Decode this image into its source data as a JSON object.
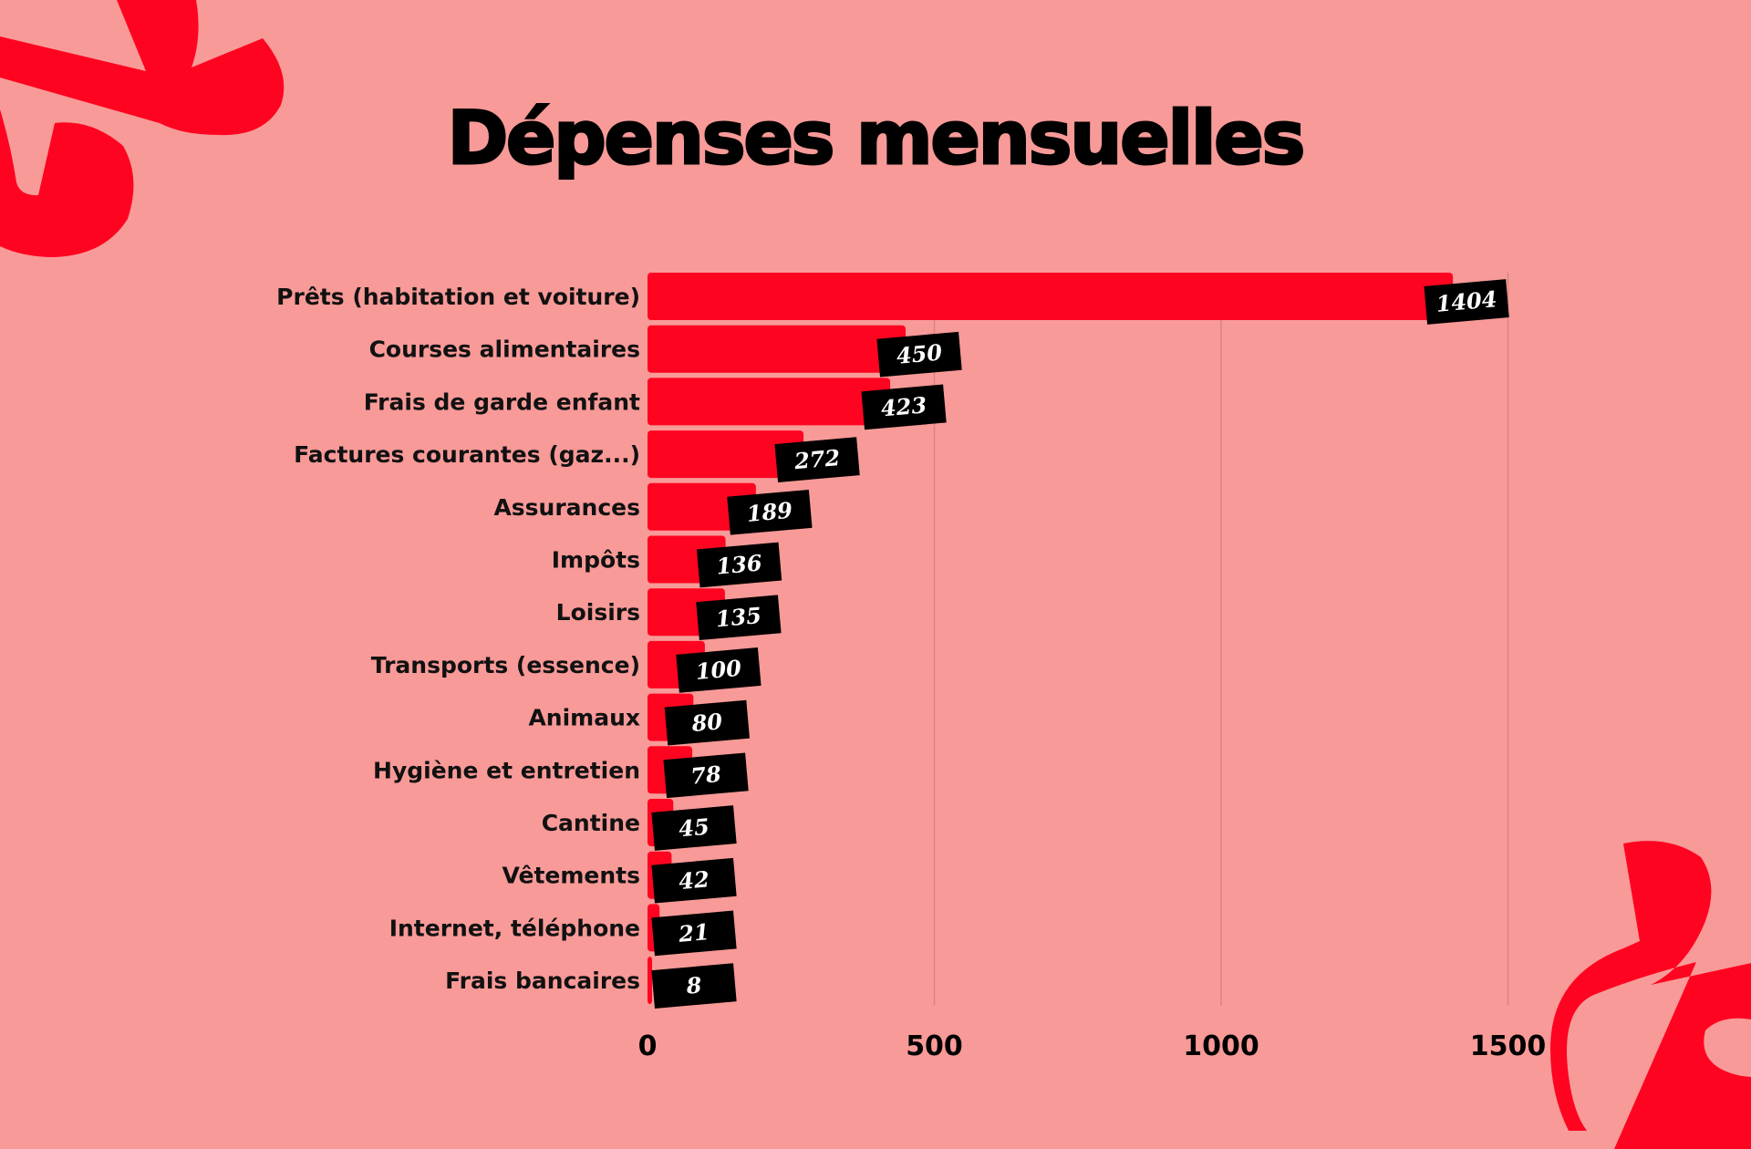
{
  "chart_data": {
    "type": "bar",
    "orientation": "horizontal",
    "title": "Dépenses mensuelles",
    "xlabel": "",
    "ylabel": "",
    "categories": [
      "Prêts (habitation et voiture)",
      "Courses alimentaires",
      "Frais de garde enfant",
      "Factures courantes (gaz...)",
      "Assurances",
      "Impôts",
      "Loisirs",
      "Transports (essence)",
      "Animaux",
      "Hygiène et entretien",
      "Cantine",
      "Vêtements",
      "Internet, téléphone",
      "Frais bancaires"
    ],
    "values": [
      1404,
      450,
      423,
      272,
      189,
      136,
      135,
      100,
      80,
      78,
      45,
      42,
      21,
      8
    ],
    "xlim": [
      0,
      1500
    ],
    "xticks": [
      0,
      500,
      1000,
      1500
    ],
    "grid": true,
    "legend": "none",
    "colors": {
      "bar": "#FF0420",
      "background": "#F89A98",
      "label_box": "#000000",
      "decoration": "#FF0420"
    }
  }
}
